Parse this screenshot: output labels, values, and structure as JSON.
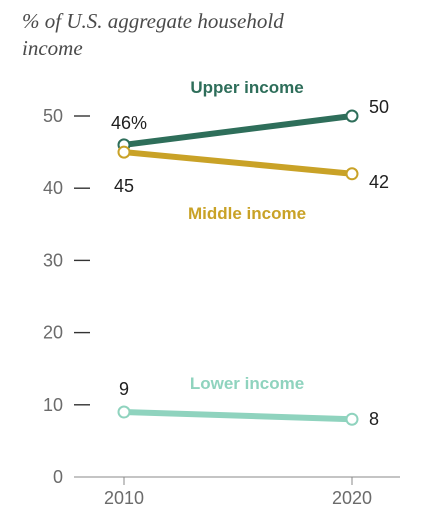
{
  "chart_data": {
    "type": "line",
    "title_lines": [
      "% of U.S. aggregate household",
      "income"
    ],
    "x": [
      "2010",
      "2020"
    ],
    "ylim": [
      0,
      50
    ],
    "y_ticks": [
      "0",
      "10",
      "20",
      "30",
      "40",
      "50"
    ],
    "grid": false,
    "series": [
      {
        "name": "Upper income",
        "values": [
          46,
          50
        ],
        "labels": [
          "46%",
          "50"
        ],
        "color": "#2e6e5a"
      },
      {
        "name": "Middle income",
        "values": [
          45,
          42
        ],
        "labels": [
          "45",
          "42"
        ],
        "color": "#c9a227"
      },
      {
        "name": "Lower income",
        "values": [
          9,
          8
        ],
        "labels": [
          "9",
          "8"
        ],
        "color": "#8fd3be"
      }
    ]
  }
}
